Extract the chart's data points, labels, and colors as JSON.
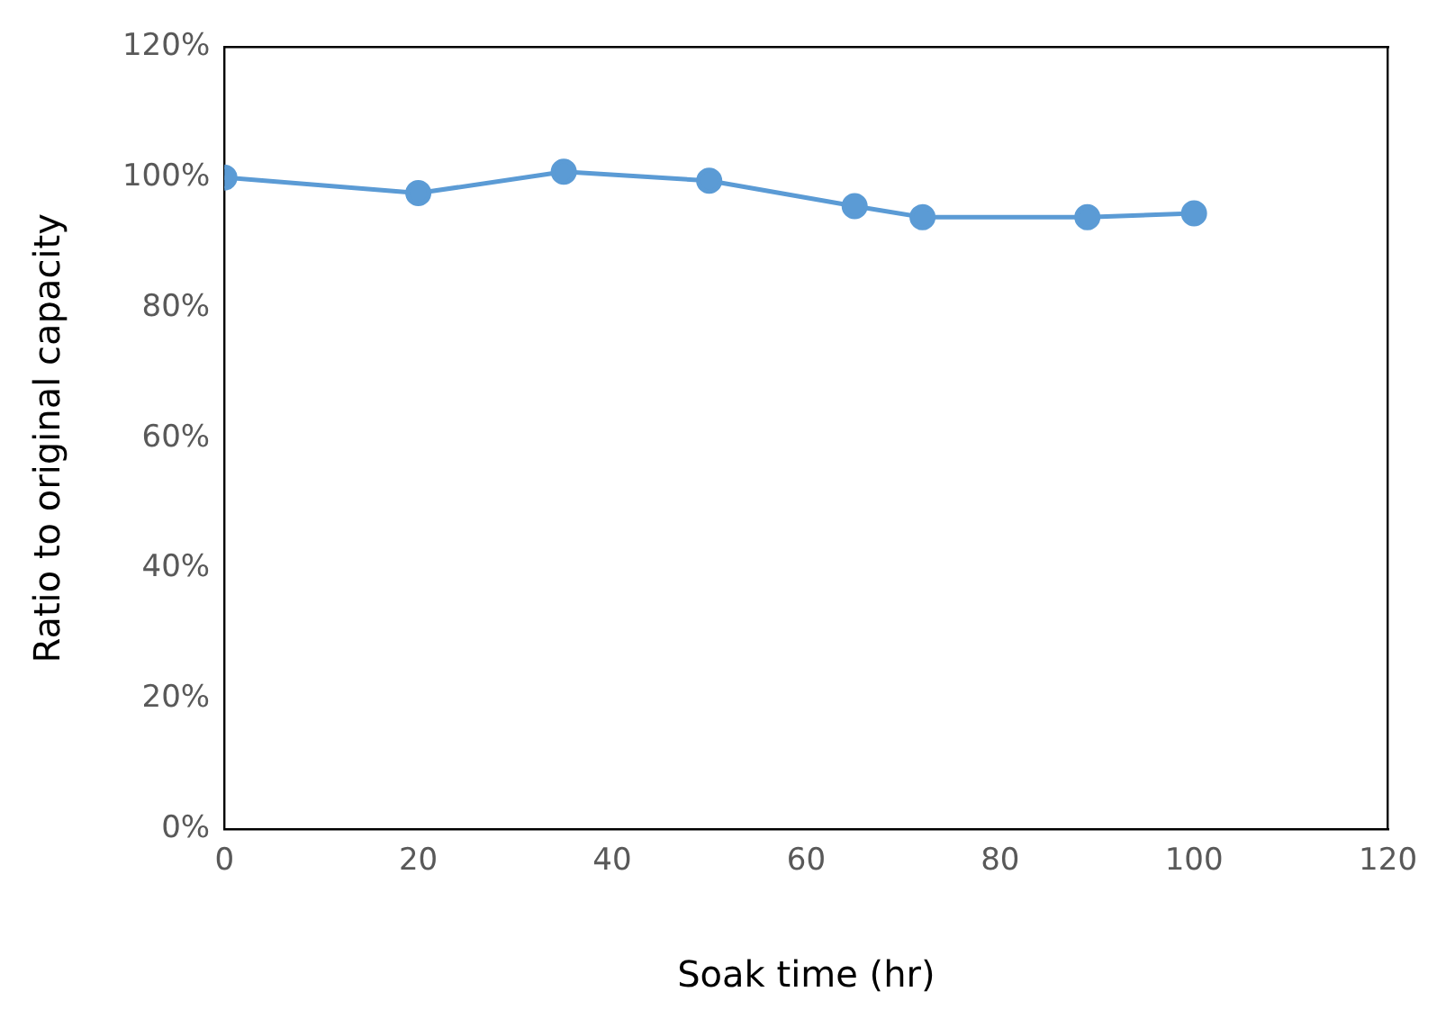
{
  "chart_data": {
    "type": "line",
    "xlabel": "Soak time (hr)",
    "ylabel": "Ratio to original capacity",
    "x": [
      0,
      20,
      35,
      50,
      65,
      72,
      89,
      100
    ],
    "series": [
      {
        "color": "#5b9bd5",
        "values": [
          100,
          97.6,
          100.9,
          99.5,
          95.6,
          93.9,
          93.9,
          94.5
        ]
      }
    ],
    "xlim": [
      0,
      120
    ],
    "xticks": [
      0,
      20,
      40,
      60,
      80,
      100,
      120
    ],
    "ylim": [
      0,
      120
    ],
    "yticks": [
      {
        "value": 0,
        "label": "0%"
      },
      {
        "value": 20,
        "label": "20%"
      },
      {
        "value": 40,
        "label": "40%"
      },
      {
        "value": 60,
        "label": "60%"
      },
      {
        "value": 80,
        "label": "80%"
      },
      {
        "value": 100,
        "label": "100%"
      },
      {
        "value": 120,
        "label": "120%"
      }
    ],
    "grid": false,
    "legend": false,
    "marker": "circle",
    "line_style": "solid"
  }
}
